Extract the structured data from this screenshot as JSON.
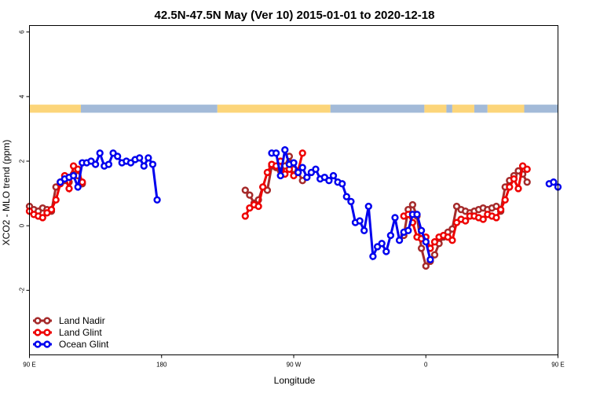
{
  "chart_data": {
    "type": "line",
    "title": "42.5N-47.5N May (Ver 10)   2015-01-01 to 2020-12-18",
    "xlabel": "Longitude",
    "ylabel": "XCO2 - MLO trend (ppm)",
    "xlim": [
      90,
      450
    ],
    "ylim": [
      -4,
      6.2
    ],
    "x_ticks": [
      {
        "value": 90,
        "label": "90 E"
      },
      {
        "value": 180,
        "label": "180"
      },
      {
        "value": 270,
        "label": "90 W"
      },
      {
        "value": 360,
        "label": "0"
      },
      {
        "value": 450,
        "label": "90 E"
      },
      {
        "value": 540,
        "label": "180"
      }
    ],
    "y_ticks": [
      {
        "value": -2,
        "label": "-2"
      },
      {
        "value": 0,
        "label": "0"
      },
      {
        "value": 2,
        "label": "2"
      },
      {
        "value": 4,
        "label": "4"
      },
      {
        "value": 6,
        "label": "6"
      }
    ],
    "grid": false,
    "legend_position": "bottom-left",
    "land_ocean_band": {
      "y_range": [
        3.5,
        3.75
      ],
      "land_color": "#fcd57a",
      "ocean_color": "#a3bad8"
    },
    "series": [
      {
        "name": "Land Nadir",
        "color": "#a52a2a",
        "points": [
          [
            90,
            0.6
          ],
          [
            93,
            0.5
          ],
          [
            96,
            0.45
          ],
          [
            99,
            0.55
          ],
          [
            102,
            0.5
          ],
          [
            105,
            0.45
          ],
          [
            108,
            1.2
          ],
          [
            111,
            1.35
          ],
          [
            114,
            1.4
          ],
          [
            117,
            1.35
          ],
          [
            120,
            1.6
          ],
          [
            123,
            1.55
          ],
          [
            126,
            1.3
          ],
          [
            237,
            1.1
          ],
          [
            240,
            0.95
          ],
          [
            243,
            0.7
          ],
          [
            246,
            0.8
          ],
          [
            249,
            1.2
          ],
          [
            252,
            1.1
          ],
          [
            255,
            1.85
          ],
          [
            258,
            1.8
          ],
          [
            261,
            1.7
          ],
          [
            264,
            1.85
          ],
          [
            267,
            2.15
          ],
          [
            270,
            1.75
          ],
          [
            273,
            1.65
          ],
          [
            276,
            1.4
          ],
          [
            345,
            -0.3
          ],
          [
            348,
            0.5
          ],
          [
            351,
            0.65
          ],
          [
            354,
            0.3
          ],
          [
            357,
            -0.7
          ],
          [
            360,
            -1.25
          ],
          [
            363,
            -1.1
          ],
          [
            366,
            -0.9
          ],
          [
            369,
            -0.55
          ],
          [
            372,
            -0.35
          ],
          [
            375,
            -0.2
          ],
          [
            378,
            -0.1
          ],
          [
            381,
            0.6
          ],
          [
            384,
            0.5
          ],
          [
            387,
            0.45
          ],
          [
            390,
            0.4
          ],
          [
            393,
            0.45
          ],
          [
            396,
            0.5
          ],
          [
            399,
            0.55
          ],
          [
            402,
            0.5
          ],
          [
            405,
            0.55
          ],
          [
            408,
            0.6
          ],
          [
            411,
            0.45
          ],
          [
            414,
            1.2
          ],
          [
            417,
            1.4
          ],
          [
            420,
            1.55
          ],
          [
            423,
            1.7
          ],
          [
            426,
            1.6
          ],
          [
            429,
            1.35
          ]
        ]
      },
      {
        "name": "Land Glint",
        "color": "#ee0000",
        "points": [
          [
            90,
            0.45
          ],
          [
            93,
            0.35
          ],
          [
            96,
            0.3
          ],
          [
            99,
            0.25
          ],
          [
            102,
            0.4
          ],
          [
            105,
            0.5
          ],
          [
            108,
            0.8
          ],
          [
            111,
            1.3
          ],
          [
            114,
            1.55
          ],
          [
            117,
            1.15
          ],
          [
            120,
            1.85
          ],
          [
            123,
            1.75
          ],
          [
            126,
            1.35
          ],
          [
            237,
            0.3
          ],
          [
            240,
            0.55
          ],
          [
            243,
            0.65
          ],
          [
            246,
            0.6
          ],
          [
            249,
            1.2
          ],
          [
            252,
            1.65
          ],
          [
            255,
            1.9
          ],
          [
            258,
            1.85
          ],
          [
            261,
            2.0
          ],
          [
            264,
            1.6
          ],
          [
            267,
            1.75
          ],
          [
            270,
            1.55
          ],
          [
            273,
            1.7
          ],
          [
            276,
            2.25
          ],
          [
            345,
            0.3
          ],
          [
            348,
            0.35
          ],
          [
            351,
            0.1
          ],
          [
            354,
            -0.35
          ],
          [
            357,
            -0.4
          ],
          [
            360,
            -0.35
          ],
          [
            363,
            -0.7
          ],
          [
            366,
            -0.5
          ],
          [
            369,
            -0.35
          ],
          [
            372,
            -0.3
          ],
          [
            375,
            -0.35
          ],
          [
            378,
            -0.45
          ],
          [
            381,
            0.1
          ],
          [
            384,
            0.2
          ],
          [
            387,
            0.15
          ],
          [
            390,
            0.3
          ],
          [
            393,
            0.3
          ],
          [
            396,
            0.25
          ],
          [
            399,
            0.2
          ],
          [
            402,
            0.35
          ],
          [
            405,
            0.3
          ],
          [
            408,
            0.25
          ],
          [
            411,
            0.5
          ],
          [
            414,
            0.8
          ],
          [
            417,
            1.2
          ],
          [
            420,
            1.45
          ],
          [
            423,
            1.15
          ],
          [
            426,
            1.85
          ],
          [
            429,
            1.75
          ]
        ]
      },
      {
        "name": "Ocean Glint",
        "color": "#0000ee",
        "points": [
          [
            111,
            1.35
          ],
          [
            114,
            1.45
          ],
          [
            117,
            1.5
          ],
          [
            120,
            1.55
          ],
          [
            123,
            1.2
          ],
          [
            126,
            1.95
          ],
          [
            129,
            1.95
          ],
          [
            132,
            2.0
          ],
          [
            135,
            1.9
          ],
          [
            138,
            2.25
          ],
          [
            141,
            1.85
          ],
          [
            144,
            1.9
          ],
          [
            147,
            2.25
          ],
          [
            150,
            2.15
          ],
          [
            153,
            1.95
          ],
          [
            156,
            2.0
          ],
          [
            159,
            1.95
          ],
          [
            162,
            2.05
          ],
          [
            165,
            2.1
          ],
          [
            168,
            1.85
          ],
          [
            171,
            2.1
          ],
          [
            174,
            1.9
          ],
          [
            177,
            0.8
          ],
          [
            255,
            2.25
          ],
          [
            258,
            2.25
          ],
          [
            261,
            1.55
          ],
          [
            264,
            2.35
          ],
          [
            267,
            1.9
          ],
          [
            270,
            1.95
          ],
          [
            273,
            1.65
          ],
          [
            276,
            1.8
          ],
          [
            279,
            1.5
          ],
          [
            282,
            1.65
          ],
          [
            285,
            1.75
          ],
          [
            288,
            1.45
          ],
          [
            291,
            1.5
          ],
          [
            294,
            1.4
          ],
          [
            297,
            1.55
          ],
          [
            300,
            1.35
          ],
          [
            303,
            1.3
          ],
          [
            306,
            0.9
          ],
          [
            309,
            0.75
          ],
          [
            312,
            0.1
          ],
          [
            315,
            0.15
          ],
          [
            318,
            -0.15
          ],
          [
            321,
            0.6
          ],
          [
            324,
            -0.95
          ],
          [
            327,
            -0.65
          ],
          [
            330,
            -0.55
          ],
          [
            333,
            -0.8
          ],
          [
            336,
            -0.3
          ],
          [
            339,
            0.25
          ],
          [
            342,
            -0.45
          ],
          [
            345,
            -0.2
          ],
          [
            348,
            -0.15
          ],
          [
            351,
            0.35
          ],
          [
            354,
            0.35
          ],
          [
            357,
            -0.15
          ],
          [
            360,
            -0.5
          ],
          [
            363,
            -1.05
          ],
          [
            444,
            1.3
          ],
          [
            447,
            1.35
          ],
          [
            450,
            1.2
          ]
        ]
      }
    ]
  }
}
